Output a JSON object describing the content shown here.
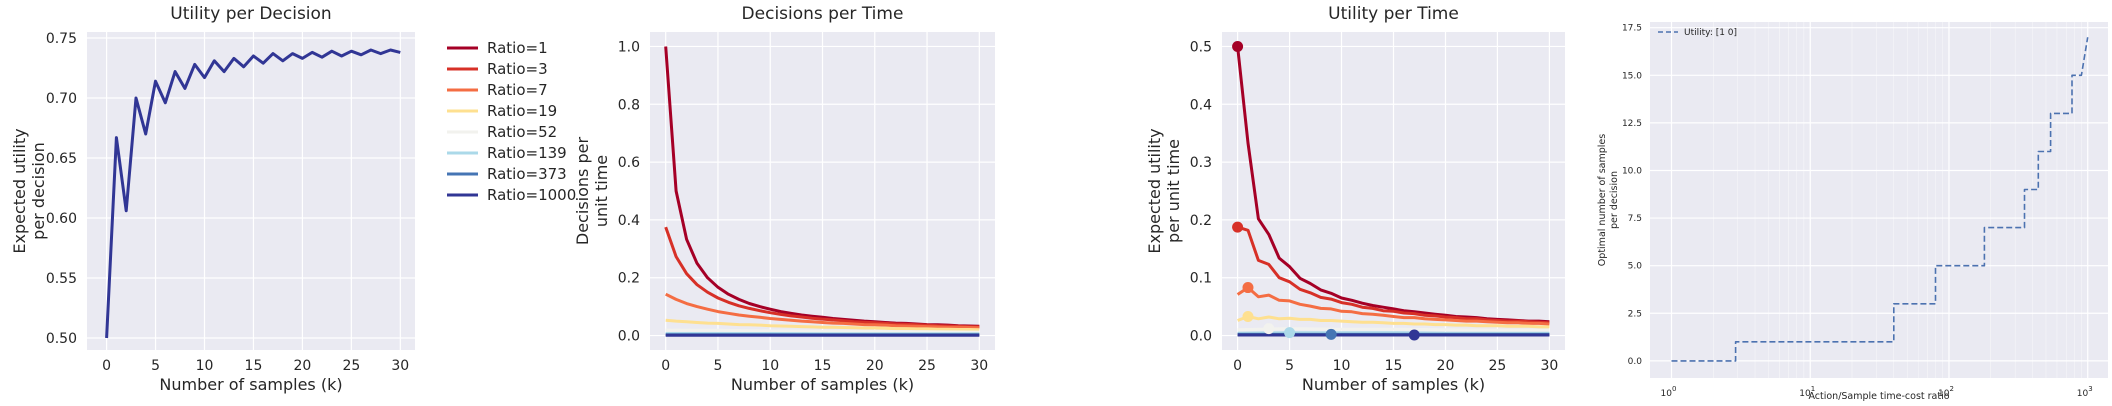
{
  "chart_data": [
    {
      "type": "line",
      "title": "Utility per Decision",
      "xlabel": "Number of samples (k)",
      "ylabel": "Expected utility per decision",
      "xlim": [
        -2,
        31.5
      ],
      "ylim": [
        0.49,
        0.755
      ],
      "xticks": [
        0,
        5,
        10,
        15,
        20,
        25,
        30
      ],
      "yticks": [
        0.5,
        0.55,
        0.6,
        0.65,
        0.7,
        0.75
      ],
      "ytick_labels": [
        "0.50",
        "0.55",
        "0.60",
        "0.65",
        "0.70",
        "0.75"
      ],
      "grid": true,
      "series": [
        {
          "name": "",
          "color": "#313695",
          "x": [
            0,
            1,
            2,
            3,
            4,
            5,
            6,
            7,
            8,
            9,
            10,
            11,
            12,
            13,
            14,
            15,
            16,
            17,
            18,
            19,
            20,
            21,
            22,
            23,
            24,
            25,
            26,
            27,
            28,
            29,
            30
          ],
          "y": [
            0.5,
            0.667,
            0.606,
            0.7,
            0.67,
            0.714,
            0.696,
            0.722,
            0.708,
            0.728,
            0.717,
            0.731,
            0.722,
            0.733,
            0.726,
            0.735,
            0.729,
            0.737,
            0.731,
            0.737,
            0.733,
            0.738,
            0.734,
            0.739,
            0.735,
            0.739,
            0.736,
            0.74,
            0.737,
            0.74,
            0.738
          ]
        }
      ]
    },
    {
      "type": "line",
      "title": "Decisions per Time",
      "xlabel": "Number of samples (k)",
      "ylabel": "Decisions per unit time",
      "xlim": [
        -1.5,
        31.5
      ],
      "ylim": [
        -0.05,
        1.05
      ],
      "xticks": [
        0,
        5,
        10,
        15,
        20,
        25,
        30
      ],
      "yticks": [
        0.0,
        0.2,
        0.4,
        0.6,
        0.8,
        1.0
      ],
      "ytick_labels": [
        "0.0",
        "0.2",
        "0.4",
        "0.6",
        "0.8",
        "1.0"
      ],
      "grid": true,
      "legend": {
        "placement": "outside-left",
        "entries": [
          {
            "label": "Ratio=1",
            "color": "#a50026"
          },
          {
            "label": "Ratio=3",
            "color": "#d73027"
          },
          {
            "label": "Ratio=7",
            "color": "#f46d43"
          },
          {
            "label": "Ratio=19",
            "color": "#fee090"
          },
          {
            "label": "Ratio=52",
            "color": "#f2f2ee"
          },
          {
            "label": "Ratio=139",
            "color": "#abd9e9"
          },
          {
            "label": "Ratio=373",
            "color": "#4575b4"
          },
          {
            "label": "Ratio=1000",
            "color": "#313695"
          }
        ]
      },
      "series": [
        {
          "name": "Ratio=1",
          "color": "#a50026",
          "x": [
            0,
            1,
            2,
            3,
            4,
            5,
            6,
            7,
            8,
            9,
            10,
            11,
            12,
            13,
            14,
            15,
            16,
            17,
            18,
            19,
            20,
            21,
            22,
            23,
            24,
            25,
            26,
            27,
            28,
            29,
            30
          ],
          "y": [
            1.0,
            0.5,
            0.333,
            0.25,
            0.2,
            0.167,
            0.143,
            0.125,
            0.111,
            0.1,
            0.091,
            0.083,
            0.077,
            0.071,
            0.067,
            0.063,
            0.059,
            0.056,
            0.053,
            0.05,
            0.048,
            0.045,
            0.043,
            0.042,
            0.04,
            0.038,
            0.037,
            0.036,
            0.034,
            0.033,
            0.032
          ]
        },
        {
          "name": "Ratio=3",
          "color": "#d73027",
          "x": [
            0,
            1,
            2,
            3,
            4,
            5,
            6,
            7,
            8,
            9,
            10,
            11,
            12,
            13,
            14,
            15,
            16,
            17,
            18,
            19,
            20,
            21,
            22,
            23,
            24,
            25,
            26,
            27,
            28,
            29,
            30
          ],
          "y": [
            0.375,
            0.273,
            0.214,
            0.176,
            0.15,
            0.13,
            0.115,
            0.103,
            0.094,
            0.086,
            0.079,
            0.073,
            0.068,
            0.064,
            0.06,
            0.057,
            0.054,
            0.051,
            0.048,
            0.046,
            0.044,
            0.042,
            0.04,
            0.039,
            0.037,
            0.036,
            0.034,
            0.033,
            0.032,
            0.031,
            0.03
          ]
        },
        {
          "name": "Ratio=7",
          "color": "#f46d43",
          "x": [
            0,
            1,
            2,
            3,
            4,
            5,
            6,
            7,
            8,
            9,
            10,
            11,
            12,
            13,
            14,
            15,
            16,
            17,
            18,
            19,
            20,
            21,
            22,
            23,
            24,
            25,
            26,
            27,
            28,
            29,
            30
          ],
          "y": [
            0.143,
            0.125,
            0.111,
            0.1,
            0.091,
            0.083,
            0.077,
            0.071,
            0.067,
            0.063,
            0.059,
            0.056,
            0.053,
            0.05,
            0.048,
            0.045,
            0.043,
            0.042,
            0.04,
            0.038,
            0.037,
            0.036,
            0.034,
            0.033,
            0.032,
            0.031,
            0.03,
            0.029,
            0.029,
            0.028,
            0.027
          ]
        },
        {
          "name": "Ratio=19",
          "color": "#fee090",
          "x": [
            0,
            1,
            2,
            3,
            4,
            5,
            6,
            7,
            8,
            9,
            10,
            11,
            12,
            13,
            14,
            15,
            16,
            17,
            18,
            19,
            20,
            21,
            22,
            23,
            24,
            25,
            26,
            27,
            28,
            29,
            30
          ],
          "y": [
            0.053,
            0.05,
            0.048,
            0.045,
            0.043,
            0.042,
            0.04,
            0.038,
            0.037,
            0.036,
            0.034,
            0.033,
            0.032,
            0.031,
            0.03,
            0.029,
            0.029,
            0.028,
            0.027,
            0.026,
            0.026,
            0.025,
            0.024,
            0.024,
            0.023,
            0.023,
            0.022,
            0.022,
            0.021,
            0.021,
            0.02
          ]
        },
        {
          "name": "Ratio=52",
          "color": "#f2f2ee",
          "x": [
            0,
            5,
            10,
            15,
            20,
            25,
            30
          ],
          "y": [
            0.019,
            0.018,
            0.016,
            0.015,
            0.014,
            0.013,
            0.012
          ]
        },
        {
          "name": "Ratio=139",
          "color": "#abd9e9",
          "x": [
            0,
            5,
            10,
            15,
            20,
            25,
            30
          ],
          "y": [
            0.007,
            0.007,
            0.007,
            0.006,
            0.006,
            0.006,
            0.006
          ]
        },
        {
          "name": "Ratio=373",
          "color": "#4575b4",
          "x": [
            0,
            30
          ],
          "y": [
            0.003,
            0.003
          ]
        },
        {
          "name": "Ratio=1000",
          "color": "#313695",
          "x": [
            0,
            30
          ],
          "y": [
            0.001,
            0.001
          ]
        }
      ]
    },
    {
      "type": "line",
      "title": "Utility per Time",
      "xlabel": "Number of samples (k)",
      "ylabel": "Expected utility per unit time",
      "xlim": [
        -1.5,
        31.5
      ],
      "ylim": [
        -0.025,
        0.525
      ],
      "xticks": [
        0,
        5,
        10,
        15,
        20,
        25,
        30
      ],
      "yticks": [
        0.0,
        0.1,
        0.2,
        0.3,
        0.4,
        0.5
      ],
      "ytick_labels": [
        "0.0",
        "0.1",
        "0.2",
        "0.3",
        "0.4",
        "0.5"
      ],
      "grid": true,
      "series": [
        {
          "name": "Ratio=1",
          "color": "#a50026",
          "x": [
            0,
            1,
            2,
            3,
            4,
            5,
            6,
            7,
            8,
            9,
            10,
            11,
            12,
            13,
            14,
            15,
            16,
            17,
            18,
            19,
            20,
            21,
            22,
            23,
            24,
            25,
            26,
            27,
            28,
            29,
            30
          ],
          "y": [
            0.5,
            0.333,
            0.202,
            0.175,
            0.134,
            0.119,
            0.099,
            0.09,
            0.079,
            0.073,
            0.065,
            0.061,
            0.056,
            0.052,
            0.049,
            0.046,
            0.043,
            0.041,
            0.039,
            0.037,
            0.035,
            0.033,
            0.032,
            0.031,
            0.029,
            0.028,
            0.027,
            0.026,
            0.025,
            0.025,
            0.024
          ]
        },
        {
          "name": "Ratio=3",
          "color": "#d73027",
          "x": [
            0,
            1,
            2,
            3,
            4,
            5,
            6,
            7,
            8,
            9,
            10,
            11,
            12,
            13,
            14,
            15,
            16,
            17,
            18,
            19,
            20,
            21,
            22,
            23,
            24,
            25,
            26,
            27,
            28,
            29,
            30
          ],
          "y": [
            0.1875,
            0.182,
            0.13,
            0.123,
            0.1,
            0.093,
            0.08,
            0.074,
            0.066,
            0.063,
            0.057,
            0.054,
            0.049,
            0.047,
            0.043,
            0.042,
            0.039,
            0.038,
            0.035,
            0.034,
            0.032,
            0.031,
            0.029,
            0.029,
            0.027,
            0.026,
            0.025,
            0.025,
            0.024,
            0.023,
            0.022
          ]
        },
        {
          "name": "Ratio=7",
          "color": "#f46d43",
          "x": [
            0,
            1,
            2,
            3,
            4,
            5,
            6,
            7,
            8,
            9,
            10,
            11,
            12,
            13,
            14,
            15,
            16,
            17,
            18,
            19,
            20,
            21,
            22,
            23,
            24,
            25,
            26,
            27,
            28,
            29,
            30
          ],
          "y": [
            0.071,
            0.083,
            0.067,
            0.07,
            0.061,
            0.06,
            0.054,
            0.051,
            0.047,
            0.046,
            0.042,
            0.041,
            0.038,
            0.037,
            0.035,
            0.033,
            0.031,
            0.031,
            0.029,
            0.028,
            0.027,
            0.026,
            0.025,
            0.025,
            0.024,
            0.023,
            0.022,
            0.022,
            0.021,
            0.021,
            0.02
          ]
        },
        {
          "name": "Ratio=19",
          "color": "#fee090",
          "x": [
            0,
            1,
            2,
            3,
            4,
            5,
            6,
            7,
            8,
            9,
            10,
            11,
            12,
            13,
            14,
            15,
            16,
            17,
            18,
            19,
            20,
            21,
            22,
            23,
            24,
            25,
            26,
            27,
            28,
            29,
            30
          ],
          "y": [
            0.026,
            0.033,
            0.029,
            0.032,
            0.029,
            0.03,
            0.028,
            0.028,
            0.026,
            0.026,
            0.025,
            0.024,
            0.023,
            0.023,
            0.022,
            0.021,
            0.021,
            0.02,
            0.02,
            0.019,
            0.019,
            0.018,
            0.018,
            0.017,
            0.017,
            0.017,
            0.016,
            0.016,
            0.016,
            0.015,
            0.015
          ]
        },
        {
          "name": "Ratio=52",
          "color": "#f2f2ee",
          "x": [
            0,
            5,
            10,
            15,
            20,
            25,
            30
          ],
          "y": [
            0.01,
            0.012,
            0.011,
            0.011,
            0.01,
            0.009,
            0.009
          ]
        },
        {
          "name": "Ratio=139",
          "color": "#abd9e9",
          "x": [
            0,
            5,
            10,
            15,
            20,
            25,
            30
          ],
          "y": [
            0.004,
            0.005,
            0.005,
            0.005,
            0.004,
            0.004,
            0.004
          ]
        },
        {
          "name": "Ratio=373",
          "color": "#4575b4",
          "x": [
            0,
            30
          ],
          "y": [
            0.002,
            0.002
          ]
        },
        {
          "name": "Ratio=1000",
          "color": "#313695",
          "x": [
            0,
            30
          ],
          "y": [
            0.001,
            0.001
          ]
        }
      ],
      "markers": [
        {
          "series": "Ratio=1",
          "x": 0,
          "y": 0.5,
          "color": "#a50026"
        },
        {
          "series": "Ratio=3",
          "x": 0,
          "y": 0.1875,
          "color": "#d73027"
        },
        {
          "series": "Ratio=7",
          "x": 1,
          "y": 0.083,
          "color": "#f46d43"
        },
        {
          "series": "Ratio=19",
          "x": 1,
          "y": 0.033,
          "color": "#fee090"
        },
        {
          "series": "Ratio=52",
          "x": 3,
          "y": 0.012,
          "color": "#f2f2ee"
        },
        {
          "series": "Ratio=139",
          "x": 5,
          "y": 0.005,
          "color": "#abd9e9"
        },
        {
          "series": "Ratio=373",
          "x": 9,
          "y": 0.002,
          "color": "#4575b4"
        },
        {
          "series": "Ratio=1000",
          "x": 17,
          "y": 0.001,
          "color": "#313695"
        }
      ]
    },
    {
      "type": "line",
      "title": "",
      "xlabel": "Action/Sample time-cost ratio",
      "ylabel": "Optimal number of samples per decision",
      "xscale": "log",
      "xlim": [
        0.7,
        1400
      ],
      "ylim": [
        -0.9,
        17.8
      ],
      "xticks": [
        1,
        10,
        100,
        1000
      ],
      "xtick_labels": [
        {
          "base": "10",
          "exp": "0"
        },
        {
          "base": "10",
          "exp": "1"
        },
        {
          "base": "10",
          "exp": "2"
        },
        {
          "base": "10",
          "exp": "3"
        }
      ],
      "yticks": [
        0.0,
        2.5,
        5.0,
        7.5,
        10.0,
        12.5,
        15.0,
        17.5
      ],
      "ytick_labels": [
        "0.0",
        "2.5",
        "5.0",
        "7.5",
        "10.0",
        "12.5",
        "15.0",
        "17.5"
      ],
      "grid": true,
      "legend": {
        "placement": "top-left",
        "entries": [
          {
            "label": "Utility: [1 0]",
            "color": "#4c72b0",
            "dashed": true
          }
        ]
      },
      "series": [
        {
          "name": "Utility: [1 0]",
          "color": "#4c72b0",
          "dashed": true,
          "x": [
            1,
            2.9,
            2.9,
            3.3,
            3.3,
            40,
            40,
            80,
            80,
            110,
            110,
            180,
            180,
            270,
            270,
            350,
            350,
            440,
            440,
            540,
            540,
            630,
            630,
            770,
            770,
            900,
            900,
            1000
          ],
          "y": [
            0,
            0,
            1,
            1,
            1,
            1,
            3,
            3,
            5,
            5,
            5,
            5,
            7,
            7,
            7,
            7,
            9,
            9,
            11,
            11,
            13,
            13,
            13,
            13,
            15,
            15,
            15,
            17
          ]
        }
      ]
    }
  ]
}
